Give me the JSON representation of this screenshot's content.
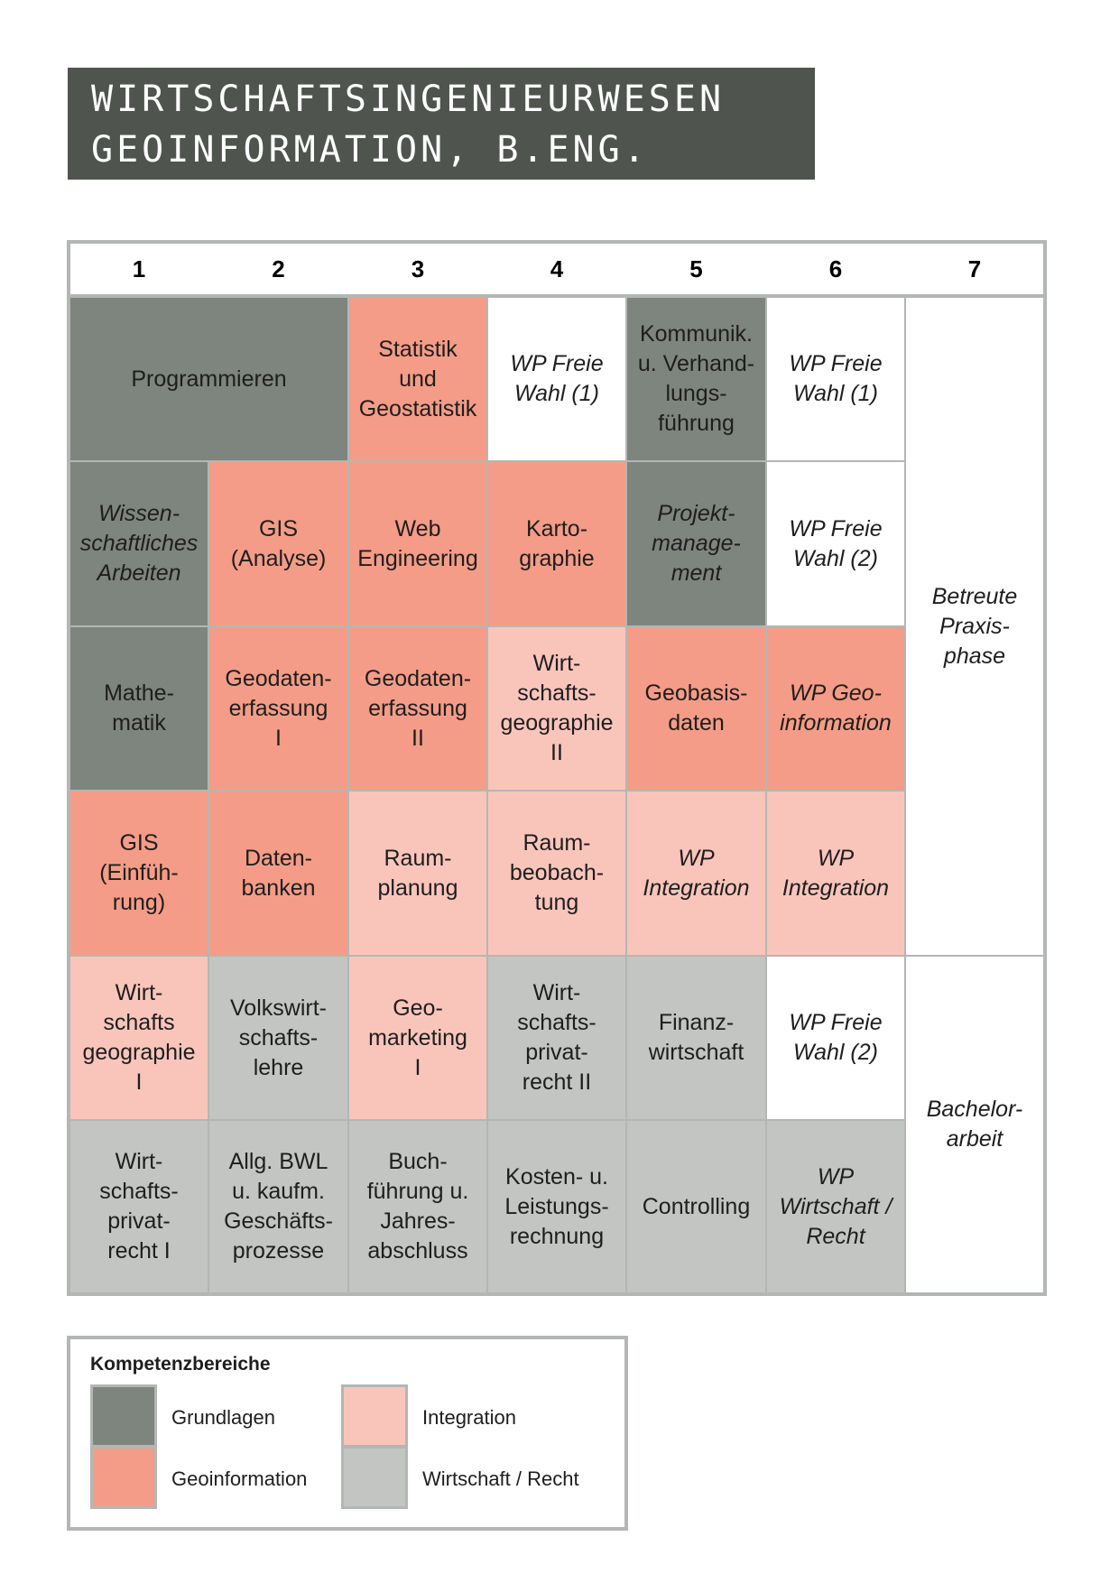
{
  "title": {
    "line1": "Wirtschaftsingenieurwesen",
    "line2": "Geoinformation, B.Eng."
  },
  "columns": [
    "1",
    "2",
    "3",
    "4",
    "5",
    "6",
    "7"
  ],
  "colors": {
    "grundlagen": "#7e847e",
    "geoinformation": "#f49c87",
    "integration": "#f9c5bb",
    "wirtschaft_recht": "#c2c5c1",
    "frame": "#b3b7b3",
    "title_bg": "#4f544f"
  },
  "modules": {
    "programmieren": "Programmieren",
    "statistik": "Statistik\nund\nGeostatistik",
    "wp_freie_1a": "WP Freie\nWahl (1)",
    "kommunikation": "Kommunik.\nu. Verhand-\nlungs-\nführung",
    "wp_freie_1b": "WP Freie\nWahl (1)",
    "praxisphase": "Betreute\nPraxis-\nphase",
    "wiss_arbeiten": "Wissen-\nschaftliches\nArbeiten",
    "gis_analyse": "GIS\n(Analyse)",
    "web_engineering": "Web\nEngineering",
    "kartographie": "Karto-\ngraphie",
    "projektmanagement": "Projekt-\nmanage-\nment",
    "wp_freie_2a": "WP Freie\nWahl (2)",
    "mathematik": "Mathe-\nmatik",
    "geodaten_1": "Geodaten-\nerfassung\nI",
    "geodaten_2": "Geodaten-\nerfassung\nII",
    "wigeo_2": "Wirt-\nschafts-\ngeographie\nII",
    "geobasisdaten": "Geobasis-\ndaten",
    "wp_geoinformation": "WP Geo-\ninformation",
    "gis_einfuehrung": "GIS\n(Einfüh-\nrung)",
    "datenbanken": "Daten-\nbanken",
    "raumplanung": "Raum-\nplanung",
    "raumbeobachtung": "Raum-\nbeobach-\ntung",
    "wp_integration_a": "WP\nIntegration",
    "wp_integration_b": "WP\nIntegration",
    "wigeo_1": "Wirt-\nschafts\ngeographie\nI",
    "vwl": "Volkswirt-\nschafts-\nlehre",
    "geomarketing": "Geo-\nmarketing\nI",
    "privatrecht_2": "Wirt-\nschafts-\nprivat-\nrecht II",
    "finanzwirtschaft": "Finanz-\nwirtschaft",
    "wp_freie_2b": "WP Freie\nWahl (2)",
    "bachelorarbeit": "Bachelor-\narbeit",
    "privatrecht_1": "Wirt-\nschafts-\nprivat-\nrecht I",
    "bwl": "Allg. BWL\nu. kaufm.\nGeschäfts-\nprozesse",
    "buchfuehrung": "Buch-\nführung u.\nJahres-\nabschluss",
    "kostenrechnung": "Kosten- u.\nLeistungs-\nrechnung",
    "controlling": "Controlling",
    "wp_wirtschaft_recht": "WP\nWirtschaft /\nRecht"
  },
  "legend": {
    "title": "Kompetenzbereiche",
    "grundlagen": "Grundlagen",
    "geoinformation": "Geoinformation",
    "integration": "Integration",
    "wirtschaft_recht": "Wirtschaft / Recht"
  }
}
